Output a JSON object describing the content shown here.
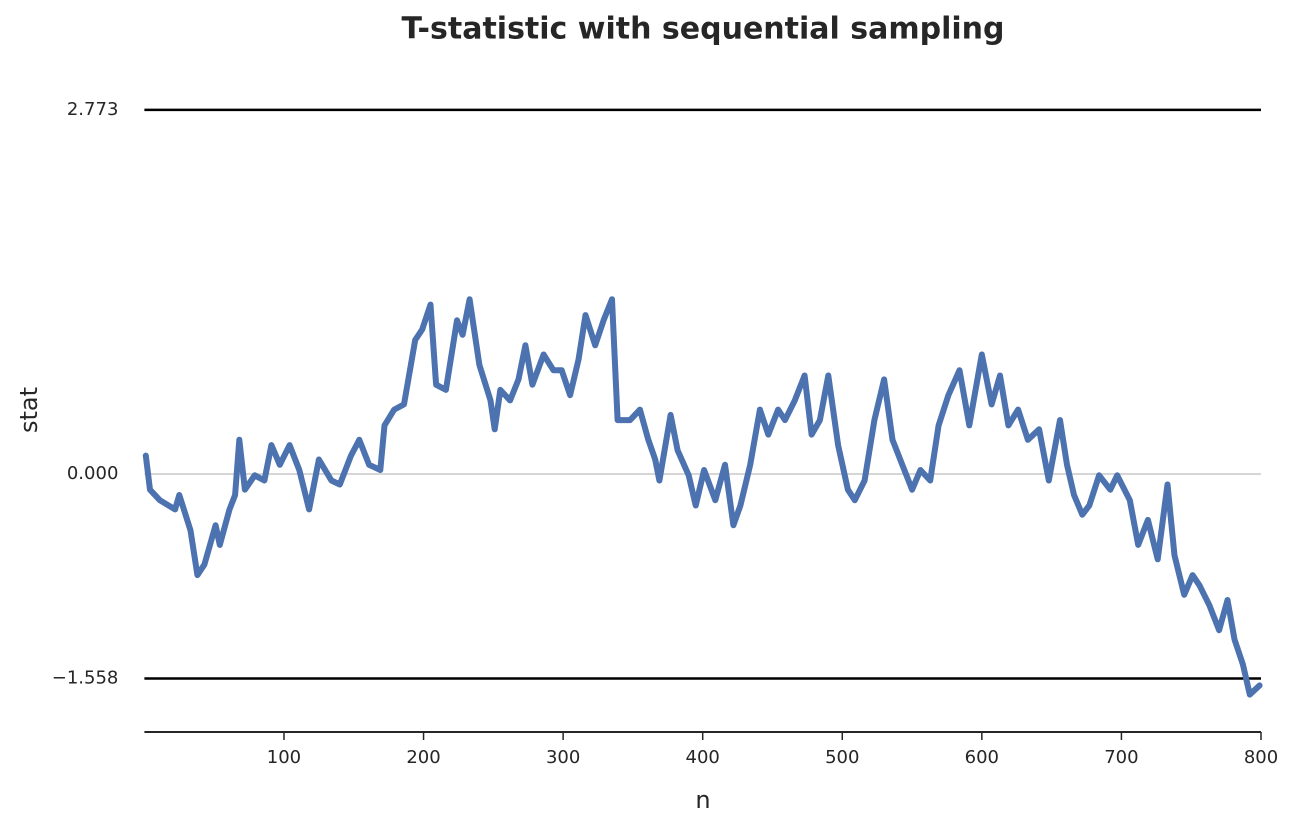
{
  "chart_data": {
    "type": "line",
    "title": "T-statistic with sequential sampling",
    "xlabel": "n",
    "ylabel": "stat",
    "color": "#4c72b0",
    "grid": true,
    "x": [
      1,
      4,
      11,
      22,
      25,
      33,
      38,
      43,
      51,
      54,
      61,
      65,
      68,
      72,
      79,
      86,
      91,
      97,
      104,
      111,
      118,
      125,
      134,
      140,
      148,
      154,
      161,
      169,
      172,
      179,
      186,
      194,
      199,
      205,
      209,
      216,
      224,
      228,
      233,
      240,
      248,
      251,
      255,
      262,
      268,
      273,
      278,
      286,
      293,
      299,
      305,
      311,
      316,
      323,
      329,
      335,
      339,
      348,
      355,
      361,
      366,
      369,
      377,
      382,
      390,
      395,
      401,
      409,
      416,
      422,
      427,
      434,
      441,
      447,
      454,
      459,
      466,
      473,
      478,
      484,
      490,
      497,
      504,
      509,
      516,
      523,
      530,
      536,
      543,
      550,
      556,
      563,
      569,
      576,
      584,
      591,
      600,
      607,
      613,
      619,
      626,
      633,
      641,
      648,
      656,
      661,
      666,
      672,
      677,
      684,
      692,
      697,
      706,
      712,
      719,
      726,
      733,
      738,
      745,
      751,
      756,
      763,
      770,
      776,
      781,
      787,
      792,
      799
    ],
    "values": [
      0.14,
      -0.12,
      -0.2,
      -0.27,
      -0.16,
      -0.43,
      -0.77,
      -0.69,
      -0.39,
      -0.54,
      -0.27,
      -0.16,
      0.26,
      -0.12,
      -0.01,
      -0.05,
      0.22,
      0.07,
      0.22,
      0.03,
      -0.27,
      0.11,
      -0.05,
      -0.08,
      0.14,
      0.26,
      0.07,
      0.03,
      0.37,
      0.49,
      0.53,
      1.02,
      1.1,
      1.29,
      0.68,
      0.64,
      1.17,
      1.06,
      1.33,
      0.83,
      0.56,
      0.34,
      0.64,
      0.56,
      0.72,
      0.98,
      0.68,
      0.91,
      0.79,
      0.79,
      0.6,
      0.87,
      1.21,
      0.98,
      1.17,
      1.33,
      0.41,
      0.41,
      0.49,
      0.26,
      0.11,
      -0.05,
      0.45,
      0.18,
      -0.01,
      -0.24,
      0.03,
      -0.2,
      0.07,
      -0.39,
      -0.24,
      0.07,
      0.49,
      0.3,
      0.49,
      0.41,
      0.56,
      0.75,
      0.3,
      0.41,
      0.75,
      0.22,
      -0.12,
      -0.2,
      -0.05,
      0.41,
      0.72,
      0.26,
      0.07,
      -0.12,
      0.03,
      -0.05,
      0.37,
      0.6,
      0.79,
      0.37,
      0.91,
      0.53,
      0.75,
      0.37,
      0.49,
      0.26,
      0.34,
      -0.05,
      0.41,
      0.07,
      -0.16,
      -0.31,
      -0.24,
      -0.01,
      -0.12,
      -0.01,
      -0.2,
      -0.54,
      -0.35,
      -0.65,
      -0.08,
      -0.62,
      -0.92,
      -0.77,
      -0.85,
      -1.0,
      -1.19,
      -0.96,
      -1.26,
      -1.45,
      -1.68,
      -1.61
    ],
    "xlim": [
      0,
      800
    ],
    "xticks": [
      100,
      200,
      300,
      400,
      500,
      600,
      700,
      800
    ],
    "ylim": [
      -1.965,
      2.924
    ],
    "yticks": [
      {
        "value": 2.773,
        "label": "2.773"
      },
      {
        "value": 0,
        "label": "0.000"
      },
      {
        "value": -1.558,
        "label": "−1.558"
      }
    ],
    "reference_lines": [
      2.773,
      -1.558
    ]
  }
}
